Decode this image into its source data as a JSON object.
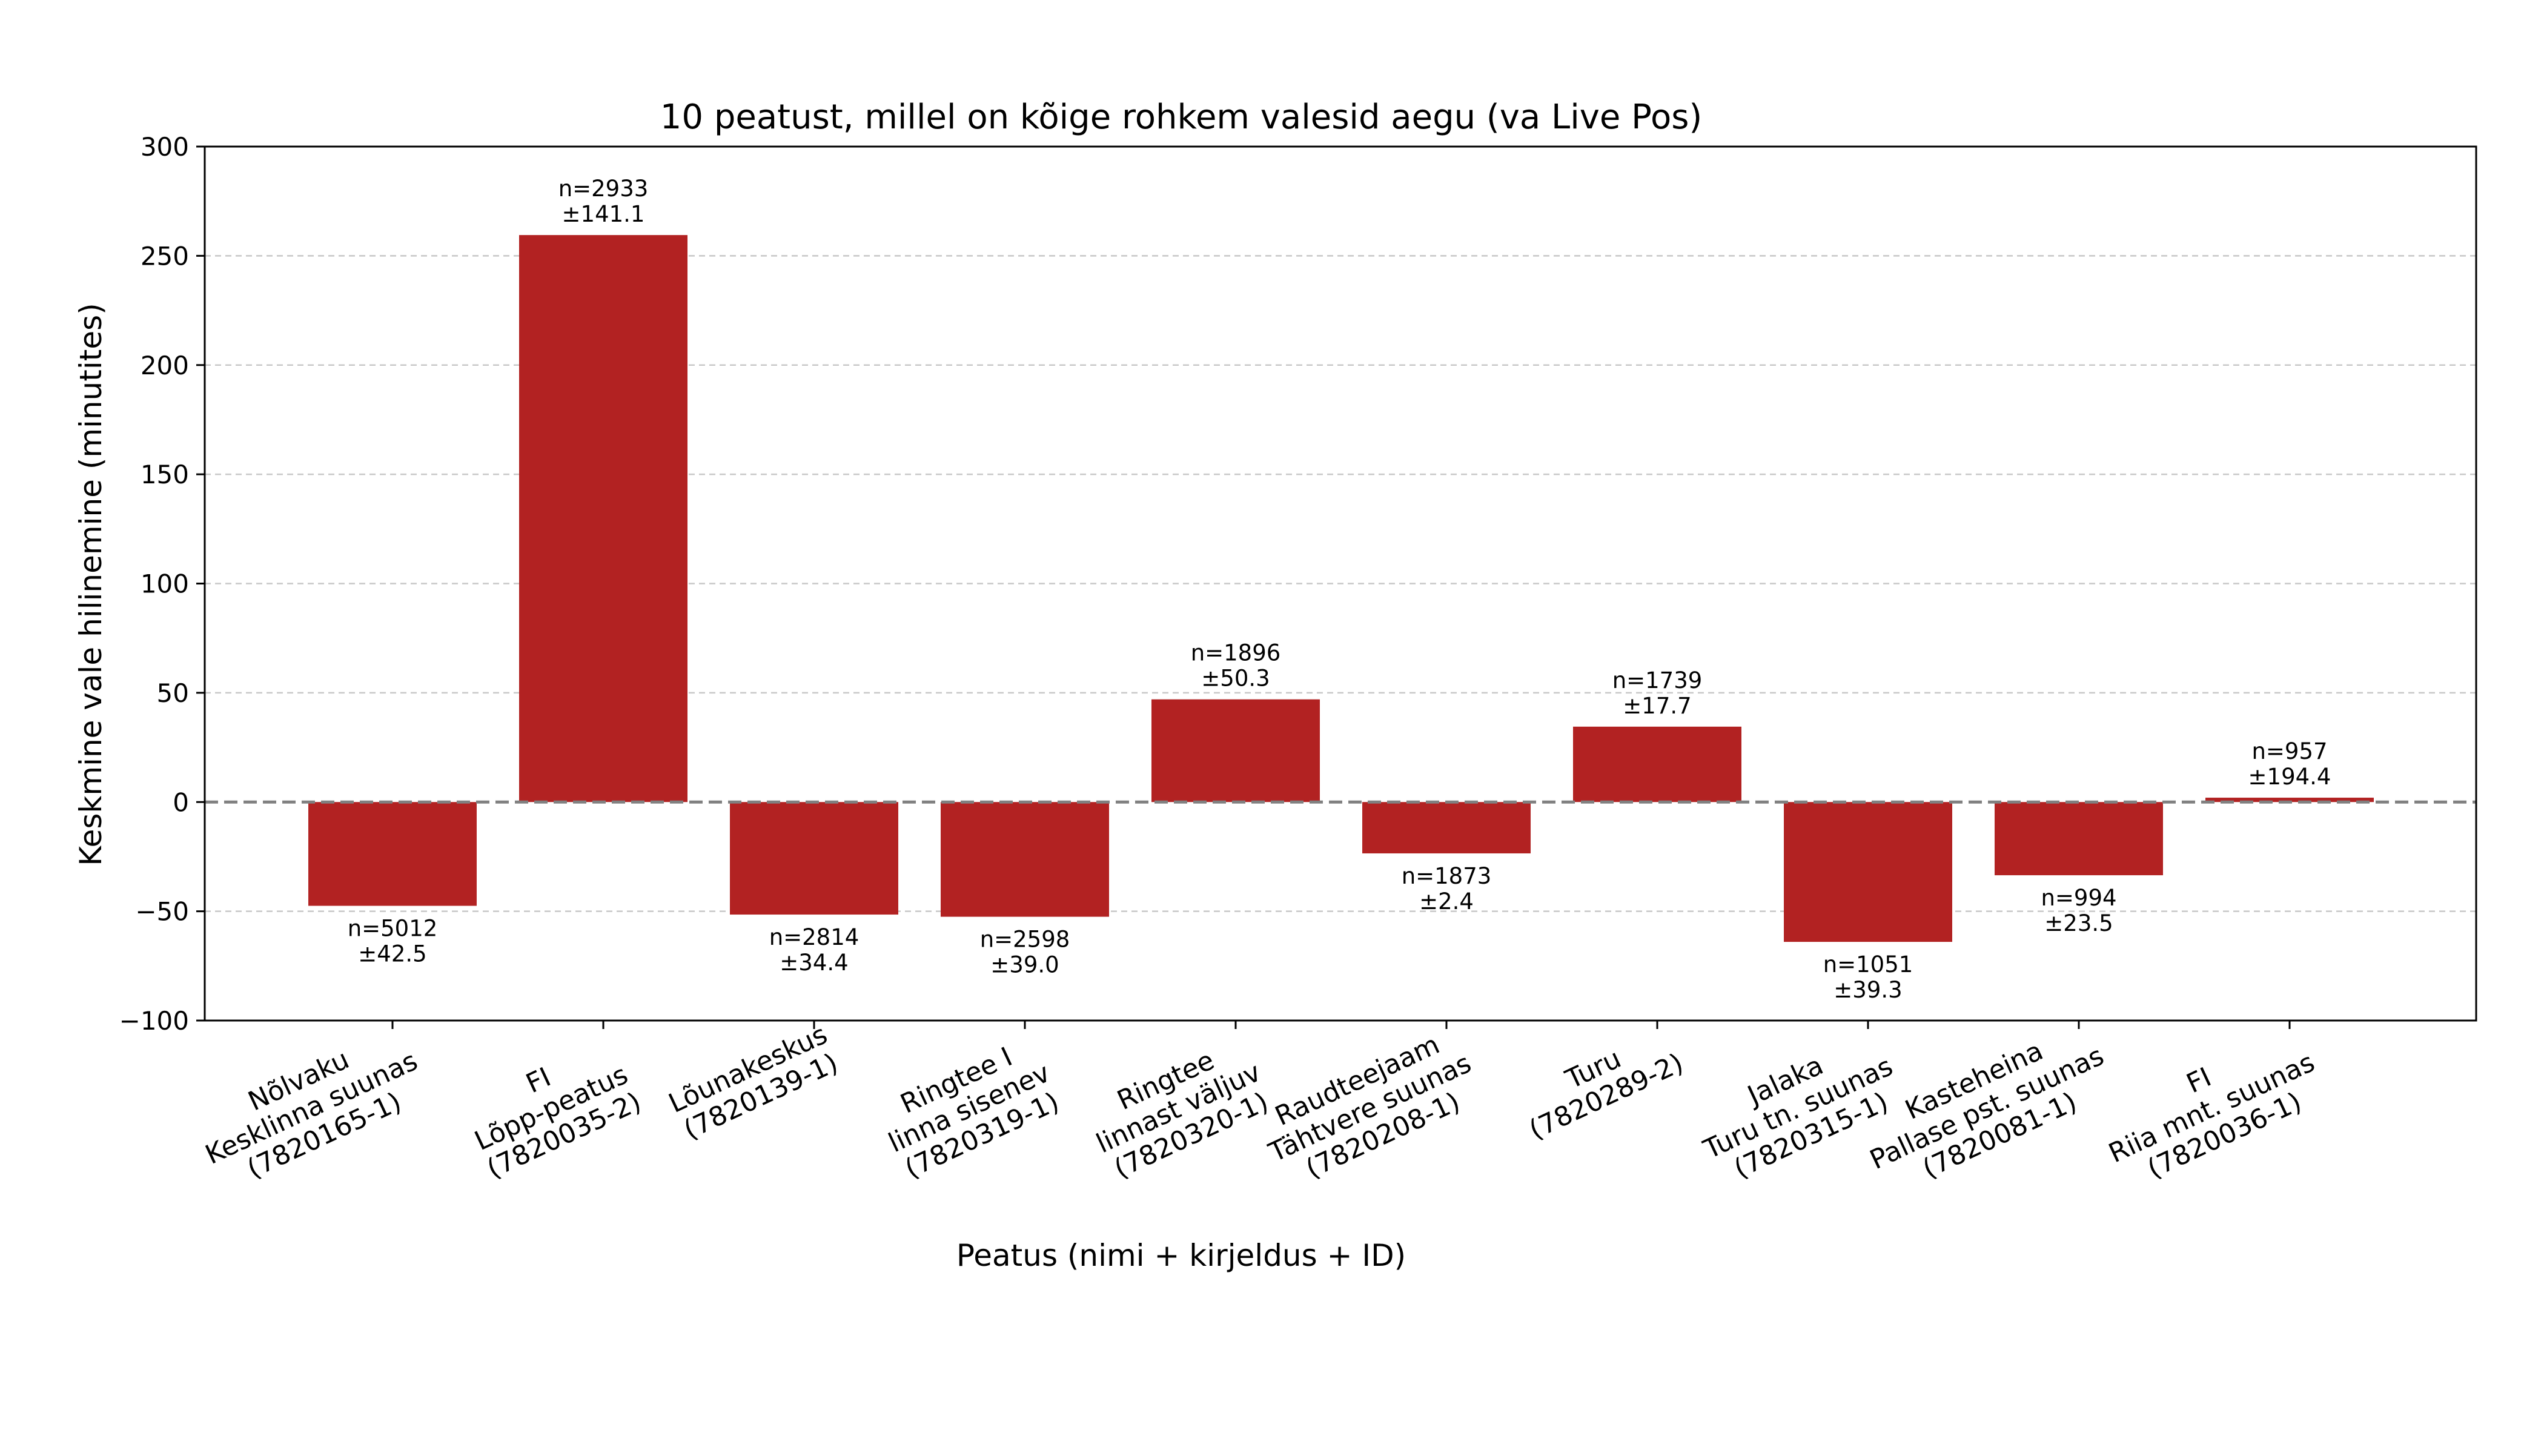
{
  "chart_data": {
    "type": "bar",
    "title": "10 peatust, millel on kõige rohkem valesid aegu (va Live Pos)",
    "xlabel": "Peatus (nimi + kirjeldus + ID)",
    "ylabel": "Keskmine vale hilinemine (minutites)",
    "ylim": [
      -100,
      300
    ],
    "yticks": [
      -100,
      -50,
      0,
      50,
      100,
      150,
      200,
      250,
      300
    ],
    "ytick_labels": [
      "−100",
      "−50",
      "0",
      "50",
      "100",
      "150",
      "200",
      "250",
      "300"
    ],
    "grid": true,
    "bar_color": "#b22222",
    "zero_line_color": "#808080",
    "categories": [
      [
        "Nõlvaku",
        "Kesklinna suunas",
        "(7820165-1)"
      ],
      [
        "FI",
        "Lõpp-peatus",
        "(7820035-2)"
      ],
      [
        "Lõunakeskus",
        "(7820139-1)"
      ],
      [
        "Ringtee I",
        "linna sisenev",
        "(7820319-1)"
      ],
      [
        "Ringtee",
        "linnast väljuv",
        "(7820320-1)"
      ],
      [
        "Raudteejaam",
        "Tähtvere suunas",
        "(7820208-1)"
      ],
      [
        "Turu",
        "(7820289-2)"
      ],
      [
        "Jalaka",
        "Turu tn. suunas",
        "(7820315-1)"
      ],
      [
        "Kasteheina",
        "Pallase pst. suunas",
        "(7820081-1)"
      ],
      [
        "FI",
        "Riia mnt. suunas",
        "(7820036-1)"
      ]
    ],
    "values": [
      -47.5,
      259.5,
      -51.5,
      -52.5,
      47.0,
      -23.5,
      34.5,
      -64.0,
      -33.5,
      2.0
    ],
    "data_labels": [
      [
        "n=5012",
        "±42.5"
      ],
      [
        "n=2933",
        "±141.1"
      ],
      [
        "n=2814",
        "±34.4"
      ],
      [
        "n=2598",
        "±39.0"
      ],
      [
        "n=1896",
        "±50.3"
      ],
      [
        "n=1873",
        "±2.4"
      ],
      [
        "n=1739",
        "±17.7"
      ],
      [
        "n=1051",
        "±39.3"
      ],
      [
        "n=994",
        "±23.5"
      ],
      [
        "n=957",
        "±194.4"
      ]
    ]
  }
}
